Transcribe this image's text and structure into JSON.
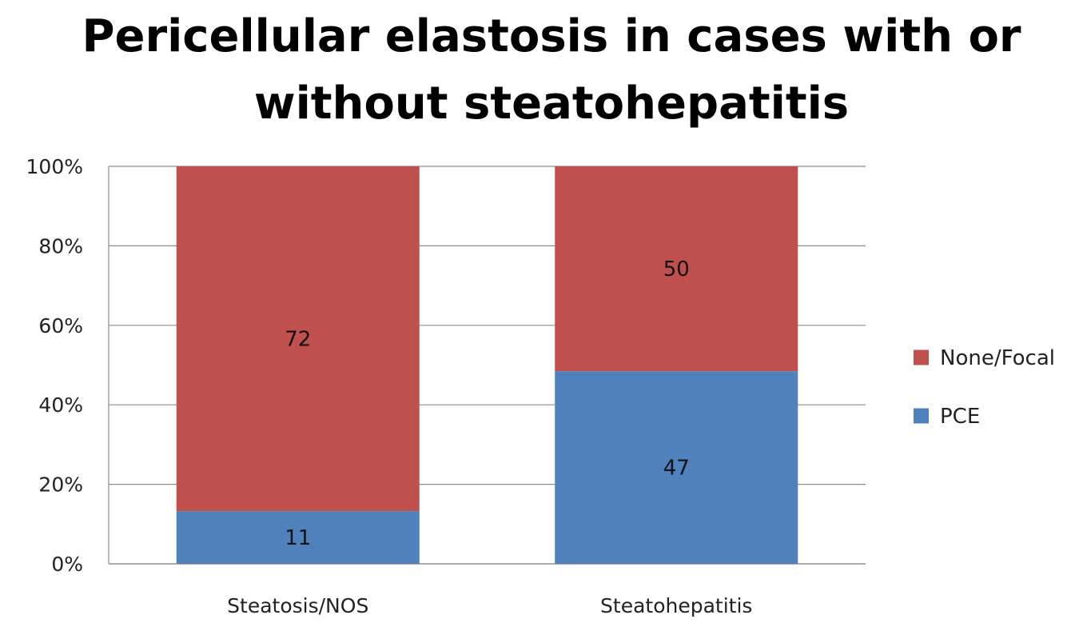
{
  "chart_data": {
    "type": "bar",
    "stacked": true,
    "percent_stacked": true,
    "title_lines": [
      "Pericellular elastosis in cases with or",
      "without steatohepatitis"
    ],
    "categories": [
      "Steatosis/NOS",
      "Steatohepatitis"
    ],
    "series": [
      {
        "name": "PCE",
        "values": [
          11,
          47
        ],
        "color": "#4F81BD"
      },
      {
        "name": "None/Focal",
        "values": [
          72,
          50
        ],
        "color": "#C0504D"
      }
    ],
    "y_ticks": [
      "0%",
      "20%",
      "40%",
      "60%",
      "80%",
      "100%"
    ],
    "ylim": [
      0,
      100
    ],
    "grid": true,
    "legend_position": "right",
    "legend_order": [
      "None/Focal",
      "PCE"
    ]
  }
}
